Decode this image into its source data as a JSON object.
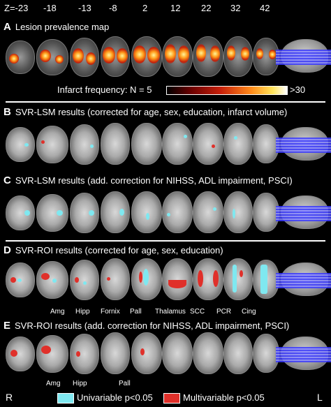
{
  "z_labels": [
    "Z=-23",
    "-18",
    "-13",
    "-8",
    "2",
    "12",
    "22",
    "32",
    "42"
  ],
  "panels": [
    {
      "letter": "A",
      "title": "Lesion prevalence map"
    },
    {
      "letter": "B",
      "title": "SVR-LSM results (corrected for age, sex, education, infarct volume)"
    },
    {
      "letter": "C",
      "title": "SVR-LSM results (add. correction for NIHSS, ADL impairment, PSCI)"
    },
    {
      "letter": "D",
      "title": "SVR-ROI results (corrected for age, sex, education)"
    },
    {
      "letter": "E",
      "title": "SVR-ROI results (add. correction for NIHSS, ADL impairment, PSCI)"
    }
  ],
  "colorbar": {
    "label": "Infarct frequency: N = 5",
    "max_label": ">30"
  },
  "roi_labels_d": [
    "Amg",
    "Hipp",
    "Fornix",
    "Pall",
    "Thalamus",
    "SCC",
    "PCR",
    "Cing"
  ],
  "roi_labels_e": [
    "Amg",
    "Hipp",
    "Pall"
  ],
  "legend": {
    "left": "R",
    "right": "L",
    "univariable": "Univariable p<0.05",
    "multivariable": "Multivariable p<0.05",
    "univariable_color": "#7fe8f0",
    "multivariable_color": "#e0302a"
  }
}
